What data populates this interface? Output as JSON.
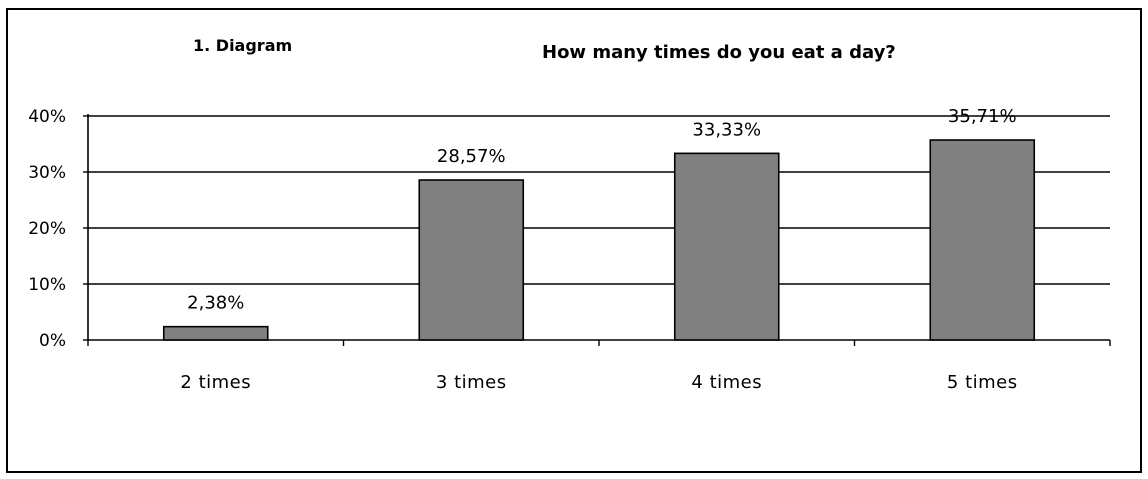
{
  "chart_data": {
    "type": "bar",
    "figure_label": "1. Diagram",
    "title": "How many times do you eat a day?",
    "xlabel": "",
    "ylabel": "",
    "categories": [
      "2 times",
      "3 times",
      "4 times",
      "5 times"
    ],
    "values": [
      2.38,
      28.57,
      33.33,
      35.71
    ],
    "data_labels": [
      "2,38%",
      "28,57%",
      "33,33%",
      "35,71%"
    ],
    "ylim": [
      0,
      40
    ],
    "yticks": [
      0,
      10,
      20,
      30,
      40
    ],
    "ytick_labels": [
      "0%",
      "10%",
      "20%",
      "30%",
      "40%"
    ],
    "grid": true,
    "legend": "none",
    "bar_color": "#808080",
    "bar_edge_color": "#000000",
    "grid_color": "#000000"
  }
}
